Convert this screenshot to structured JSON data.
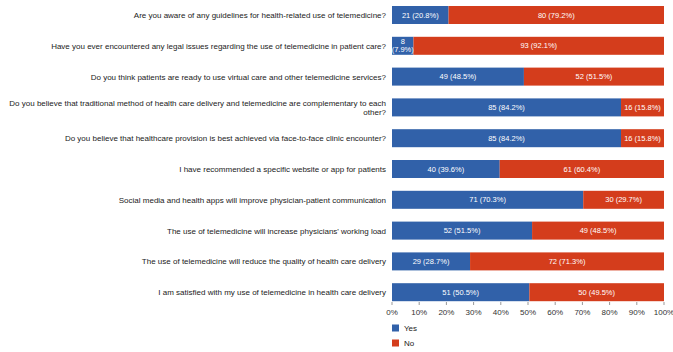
{
  "chart_data": {
    "type": "bar",
    "orientation": "horizontal",
    "stacked": true,
    "data_labels": true,
    "grid": false,
    "legend": "bottom-left",
    "categories": [
      "Are you aware of any guidelines for health-related use of telemedicine?",
      "Have you ever encountered any legal issues regarding the use of telemedicine in patient care?",
      "Do you think patients are ready to use virtual care and other telemedicine services?",
      "Do you believe that traditional method of health care delivery and telemedicine are complementary to each other?",
      "Do you believe that healthcare provision is best achieved via face-to-face clinic encounter?",
      "I have recommended a specific website or app for patients",
      "Social media and health apps will improve physician-patient communication",
      "The use of telemedicine will increase physicians' working load",
      "The use of telemedicine will reduce the quality of health care delivery",
      "I am satisfied with my use of telemedicine in health care delivery"
    ],
    "series": [
      {
        "name": "Yes",
        "color": "#3161a9",
        "values": [
          20.8,
          7.9,
          48.5,
          84.2,
          84.2,
          39.6,
          70.3,
          51.5,
          28.7,
          50.5
        ],
        "value_labels": [
          "21 (20.8%)",
          "8 (7.9%)",
          "49 (48.5%)",
          "85 (84.2%)",
          "85 (84.2%)",
          "40 (39.6%)",
          "71 (70.3%)",
          "52 (51.5%)",
          "29 (28.7%)",
          "51 (50.5%)"
        ]
      },
      {
        "name": "No",
        "color": "#d43d1c",
        "values": [
          79.2,
          92.1,
          51.5,
          15.8,
          15.8,
          60.4,
          29.7,
          48.5,
          71.3,
          49.5
        ],
        "value_labels": [
          "80 (79.2%)",
          "93 (92.1%)",
          "52 (51.5%)",
          "16 (15.8%)",
          "16 (15.8%)",
          "61 (60.4%)",
          "30 (29.7%)",
          "49 (48.5%)",
          "72 (71.3%)",
          "50 (49.5%)"
        ]
      }
    ],
    "xlim": [
      0,
      100
    ],
    "xticks": [
      {
        "value": 0,
        "label": "0%"
      },
      {
        "value": 10,
        "label": "10%"
      },
      {
        "value": 20,
        "label": "20%"
      },
      {
        "value": 30,
        "label": "30%"
      },
      {
        "value": 40,
        "label": "40%"
      },
      {
        "value": 50,
        "label": "50%"
      },
      {
        "value": 60,
        "label": "60%"
      },
      {
        "value": 70,
        "label": "70%"
      },
      {
        "value": 80,
        "label": "80%"
      },
      {
        "value": 90,
        "label": "90%"
      },
      {
        "value": 100,
        "label": "100%"
      }
    ]
  }
}
